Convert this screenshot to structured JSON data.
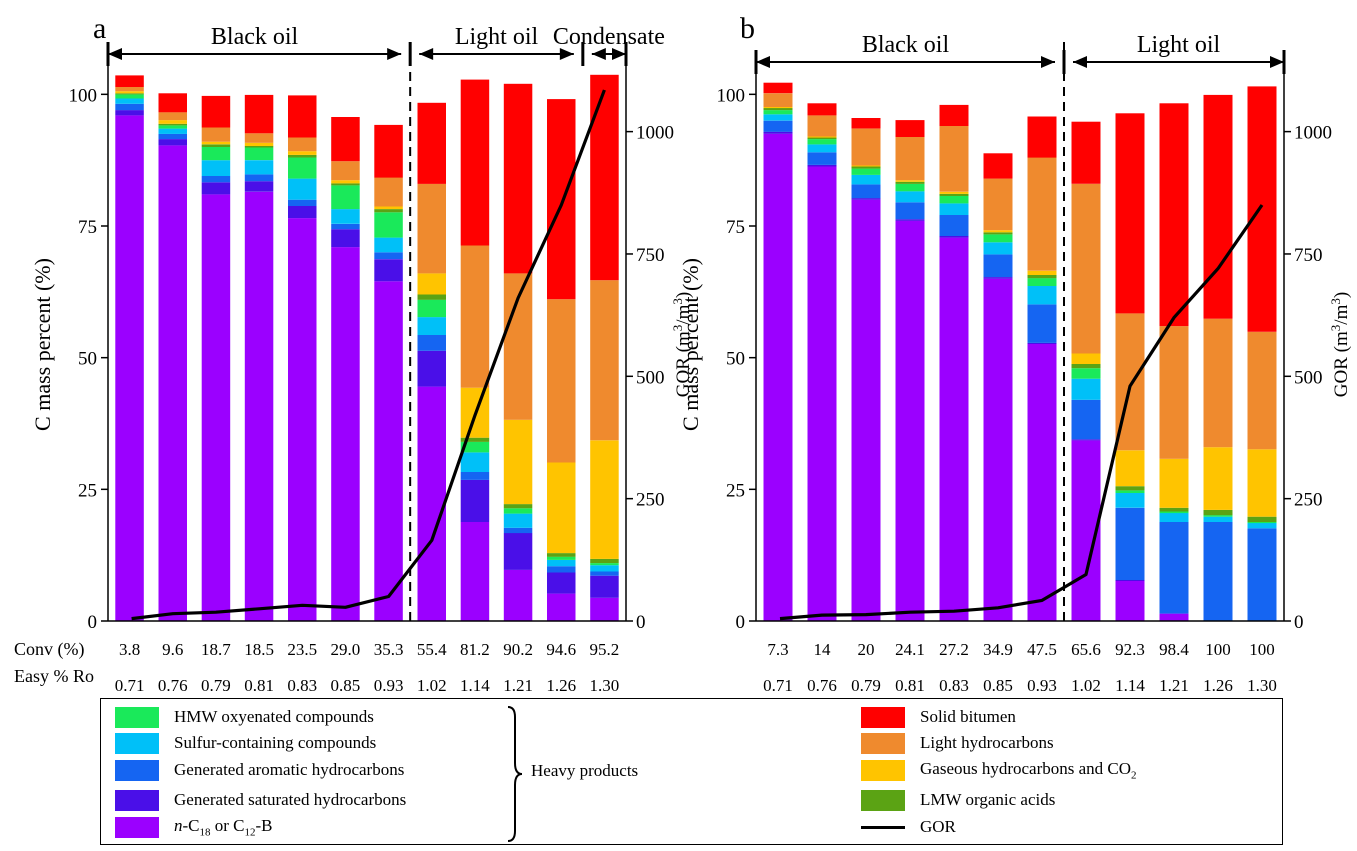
{
  "chart_data": [
    {
      "panel_label": "a",
      "type": "bar",
      "stacked": true,
      "categories": [
        "3.8",
        "9.6",
        "18.7",
        "18.5",
        "23.5",
        "29.0",
        "35.3",
        "55.4",
        "81.2",
        "90.2",
        "94.6",
        "95.2"
      ],
      "category_row_label": "Conv (%)",
      "secondary_category_row_label": "Easy % Ro",
      "secondary_categories": [
        "0.71",
        "0.76",
        "0.79",
        "0.81",
        "0.83",
        "0.85",
        "0.93",
        "1.02",
        "1.14",
        "1.21",
        "1.26",
        "1.30"
      ],
      "ylabel": "C mass percent (%)",
      "ylim": [
        0,
        105
      ],
      "yticks": [
        "0",
        "25",
        "50",
        "75",
        "100"
      ],
      "y2label": "GOR (m³/m³)",
      "y2lim": [
        0,
        1130
      ],
      "y2ticks": [
        "0",
        "250",
        "500",
        "750",
        "1000"
      ],
      "regions": [
        {
          "label": "Black oil",
          "from": 0,
          "to": 6
        },
        {
          "label": "Light oil",
          "from": 7,
          "to": 10
        },
        {
          "label": "Condensate",
          "from": 11,
          "to": 11
        }
      ],
      "divider_after_index": 6,
      "series": [
        {
          "name": "n-C18 or C12-B",
          "color": "#9B00FF",
          "values": [
            96.0,
            90.3,
            81.0,
            81.5,
            76.5,
            71.0,
            64.5,
            44.5,
            18.8,
            9.7,
            5.2,
            4.4
          ]
        },
        {
          "name": "Generated saturated hydrocarbons",
          "color": "#4A0FE8",
          "values": [
            1.0,
            1.2,
            2.3,
            2.0,
            2.3,
            3.4,
            4.2,
            6.8,
            8.0,
            7.0,
            4.0,
            4.2
          ]
        },
        {
          "name": "Generated aromatic hydrocarbons",
          "color": "#1565F2",
          "values": [
            1.2,
            1.0,
            1.2,
            1.3,
            1.2,
            1.0,
            1.3,
            3.0,
            1.5,
            1.0,
            1.2,
            0.8
          ]
        },
        {
          "name": "Sulfur-containing compounds",
          "color": "#00C0F8",
          "values": [
            1.0,
            1.0,
            3.0,
            2.7,
            4.0,
            2.8,
            2.8,
            3.4,
            3.7,
            2.7,
            1.2,
            1.2
          ]
        },
        {
          "name": "HMW oxyenated compounds",
          "color": "#1AE95A",
          "values": [
            0.8,
            0.6,
            2.5,
            2.4,
            4.0,
            4.5,
            4.8,
            3.3,
            2.0,
            1.0,
            0.6,
            0.4
          ]
        },
        {
          "name": "LMW organic acids",
          "color": "#5BA314",
          "values": [
            0.2,
            0.3,
            0.5,
            0.3,
            0.5,
            0.4,
            0.6,
            1.0,
            0.8,
            0.8,
            0.7,
            0.8
          ]
        },
        {
          "name": "Gaseous hydrocarbons and CO2",
          "color": "#FFC400",
          "values": [
            0.4,
            0.7,
            0.5,
            0.6,
            0.7,
            0.6,
            0.5,
            4.0,
            9.5,
            16.0,
            17.2,
            22.5
          ]
        },
        {
          "name": "Light hydrocarbons",
          "color": "#EF8A2E",
          "values": [
            0.8,
            1.5,
            2.7,
            1.8,
            2.6,
            3.6,
            5.5,
            17.0,
            27.0,
            27.8,
            31.0,
            30.4
          ]
        },
        {
          "name": "Solid bitumen",
          "color": "#FF0000",
          "values": [
            2.2,
            3.6,
            6.0,
            7.3,
            8.0,
            8.4,
            10.0,
            15.4,
            31.5,
            36.0,
            38.0,
            39.0
          ]
        }
      ],
      "line": {
        "name": "GOR",
        "color": "#000000",
        "axis": "y2",
        "values": [
          5,
          15,
          18,
          25,
          32,
          28,
          50,
          165,
          420,
          660,
          850,
          1085
        ]
      }
    },
    {
      "panel_label": "b",
      "type": "bar",
      "stacked": true,
      "categories": [
        "7.3",
        "14",
        "20",
        "24.1",
        "27.2",
        "34.9",
        "47.5",
        "65.6",
        "92.3",
        "98.4",
        "100",
        "100"
      ],
      "secondary_categories": [
        "0.71",
        "0.76",
        "0.79",
        "0.81",
        "0.83",
        "0.85",
        "0.93",
        "1.02",
        "1.14",
        "1.21",
        "1.26",
        "1.30"
      ],
      "ylabel": "C mass percent (%)",
      "ylim": [
        0,
        105
      ],
      "yticks": [
        "0",
        "25",
        "50",
        "75",
        "100"
      ],
      "y2label": "GOR (m³/m³)",
      "y2lim": [
        0,
        1130
      ],
      "y2ticks": [
        "0",
        "250",
        "500",
        "750",
        "1000"
      ],
      "regions": [
        {
          "label": "Black oil",
          "from": 0,
          "to": 6
        },
        {
          "label": "Light oil",
          "from": 7,
          "to": 11
        }
      ],
      "divider_after_index": 6,
      "series": [
        {
          "name": "n-C18 or C12-B",
          "color": "#9B00FF",
          "values": [
            92.5,
            86.3,
            80.0,
            76.0,
            72.8,
            65.0,
            52.6,
            34.3,
            7.6,
            1.4,
            0.0,
            0.0
          ]
        },
        {
          "name": "Generated saturated hydrocarbons",
          "color": "#4A0FE8",
          "values": [
            0.4,
            0.3,
            0.3,
            0.3,
            0.3,
            0.3,
            0.2,
            0.2,
            0.2,
            0.0,
            0.0,
            0.0
          ]
        },
        {
          "name": "Generated aromatic hydrocarbons",
          "color": "#1565F2",
          "values": [
            2.1,
            2.4,
            2.6,
            3.2,
            4.0,
            4.3,
            7.3,
            7.5,
            13.7,
            17.4,
            18.8,
            17.6
          ]
        },
        {
          "name": "Sulfur-containing compounds",
          "color": "#00C0F8",
          "values": [
            1.2,
            1.5,
            1.8,
            2.1,
            2.2,
            2.3,
            3.5,
            4.0,
            2.8,
            1.7,
            1.0,
            1.0
          ]
        },
        {
          "name": "HMW oxyenated compounds",
          "color": "#1AE95A",
          "values": [
            0.8,
            1.0,
            1.2,
            1.4,
            1.4,
            1.5,
            1.5,
            2.0,
            0.5,
            0.3,
            0.3,
            0.2
          ]
        },
        {
          "name": "LMW organic acids",
          "color": "#5BA314",
          "values": [
            0.4,
            0.3,
            0.4,
            0.4,
            0.4,
            0.4,
            0.6,
            0.8,
            0.8,
            0.7,
            1.0,
            1.0
          ]
        },
        {
          "name": "Gaseous hydrocarbons and CO2",
          "color": "#FFC400",
          "values": [
            0.2,
            0.2,
            0.2,
            0.3,
            0.4,
            0.4,
            0.8,
            2.0,
            6.8,
            9.3,
            11.9,
            12.8
          ]
        },
        {
          "name": "Light hydrocarbons",
          "color": "#EF8A2E",
          "values": [
            2.6,
            4.0,
            7.0,
            8.2,
            12.5,
            9.8,
            21.5,
            32.2,
            26.0,
            25.2,
            24.4,
            22.3
          ]
        },
        {
          "name": "Solid bitumen",
          "color": "#FF0000",
          "values": [
            2.0,
            2.3,
            2.0,
            3.2,
            4.0,
            4.8,
            7.8,
            11.8,
            38.0,
            42.3,
            42.5,
            46.6
          ]
        }
      ],
      "line": {
        "name": "GOR",
        "color": "#000000",
        "axis": "y2",
        "values": [
          5,
          12,
          13,
          18,
          20,
          27,
          42,
          95,
          480,
          620,
          720,
          850
        ]
      }
    }
  ],
  "legend": {
    "left_column": [
      {
        "name": "HMW oxyenated compounds",
        "color": "#1AE95A"
      },
      {
        "name": "Sulfur-containing compounds",
        "color": "#00C0F8"
      },
      {
        "name": "Generated aromatic hydrocarbons",
        "color": "#1565F2"
      },
      {
        "name": "Generated saturated hydrocarbons",
        "color": "#4A0FE8"
      },
      {
        "name": "n-C18 or C12-B",
        "color": "#9B00FF"
      }
    ],
    "group_label": "Heavy products",
    "right_column": [
      {
        "name": "Solid bitumen",
        "color": "#FF0000"
      },
      {
        "name": "Light hydrocarbons",
        "color": "#EF8A2E"
      },
      {
        "name": "Gaseous hydrocarbons and CO2",
        "color": "#FFC400"
      },
      {
        "name": "LMW organic acids",
        "color": "#5BA314"
      },
      {
        "name": "GOR",
        "color": "#000000",
        "kind": "line"
      }
    ]
  }
}
